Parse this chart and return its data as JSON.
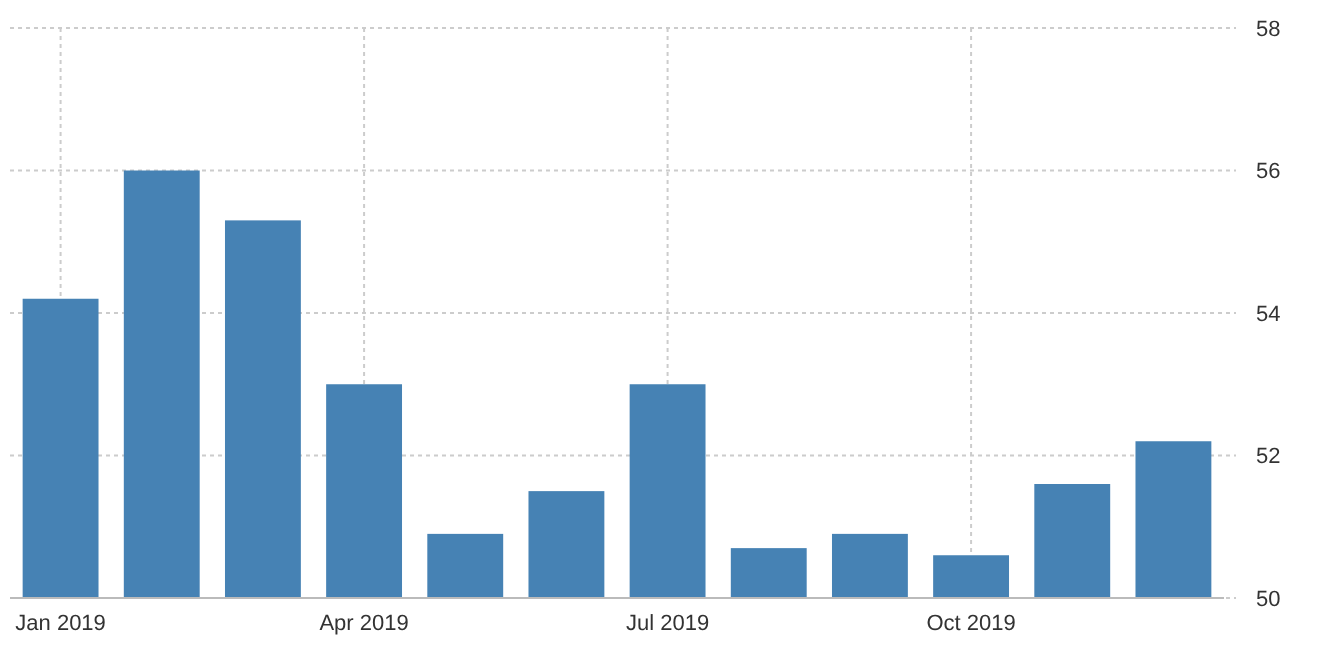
{
  "chart_data": {
    "type": "bar",
    "categories": [
      "Jan 2019",
      null,
      null,
      "Apr 2019",
      null,
      null,
      "Jul 2019",
      null,
      null,
      "Oct 2019",
      null,
      null
    ],
    "values": [
      54.2,
      56.0,
      55.3,
      53.0,
      50.9,
      51.5,
      53.0,
      50.7,
      50.9,
      50.6,
      51.6,
      52.2
    ],
    "color": "#4682b4",
    "ylim": [
      50,
      58
    ],
    "yticks": [
      50,
      52,
      54,
      56,
      58
    ],
    "grid": true
  }
}
